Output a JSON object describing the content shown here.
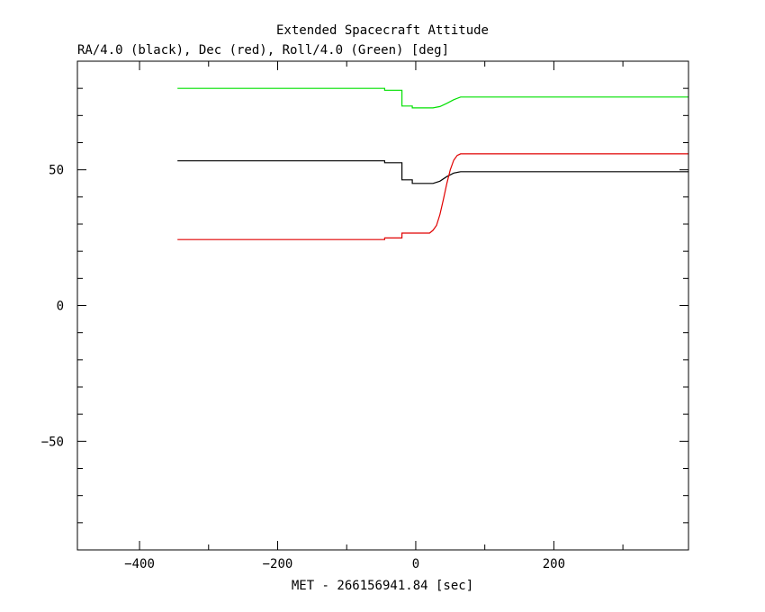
{
  "chart_data": {
    "type": "line",
    "title": "Extended Spacecraft Attitude",
    "subtitle": "RA/4.0 (black), Dec (red), Roll/4.0 (Green) [deg]",
    "xlabel": "MET - 266156941.84 [sec]",
    "ylabel": "",
    "xlim": [
      -490,
      395
    ],
    "ylim": [
      -90,
      90
    ],
    "x_ticks": [
      -400,
      -200,
      0,
      200
    ],
    "x_tick_labels": [
      "−400",
      "−200",
      "0",
      "200"
    ],
    "y_ticks": [
      -50,
      0,
      50
    ],
    "y_tick_labels": [
      "−50",
      "0",
      "50"
    ],
    "grid": false,
    "series": [
      {
        "color": "#00e000",
        "points": [
          [
            -345,
            80.0
          ],
          [
            -45,
            80.0
          ],
          [
            -45,
            79.3
          ],
          [
            -20,
            79.3
          ],
          [
            -20,
            73.5
          ],
          [
            -5,
            73.5
          ],
          [
            -5,
            72.8
          ],
          [
            15,
            72.8
          ],
          [
            25,
            72.8
          ],
          [
            35,
            73.3
          ],
          [
            45,
            74.5
          ],
          [
            55,
            75.8
          ],
          [
            65,
            76.8
          ],
          [
            395,
            76.8
          ]
        ]
      },
      {
        "color": "#000000",
        "points": [
          [
            -345,
            53.3
          ],
          [
            -45,
            53.3
          ],
          [
            -45,
            52.6
          ],
          [
            -20,
            52.6
          ],
          [
            -20,
            46.3
          ],
          [
            -5,
            46.3
          ],
          [
            -5,
            45.0
          ],
          [
            15,
            45.0
          ],
          [
            25,
            45.0
          ],
          [
            35,
            45.8
          ],
          [
            45,
            47.5
          ],
          [
            55,
            48.8
          ],
          [
            65,
            49.3
          ],
          [
            395,
            49.3
          ]
        ]
      },
      {
        "color": "#e00000",
        "points": [
          [
            -345,
            24.3
          ],
          [
            -45,
            24.3
          ],
          [
            -45,
            24.9
          ],
          [
            -20,
            24.9
          ],
          [
            -20,
            26.7
          ],
          [
            20,
            26.7
          ],
          [
            25,
            27.7
          ],
          [
            30,
            29.5
          ],
          [
            35,
            33.5
          ],
          [
            40,
            39.0
          ],
          [
            45,
            45.0
          ],
          [
            50,
            50.0
          ],
          [
            55,
            53.5
          ],
          [
            60,
            55.3
          ],
          [
            65,
            55.9
          ],
          [
            395,
            55.9
          ]
        ]
      }
    ]
  }
}
